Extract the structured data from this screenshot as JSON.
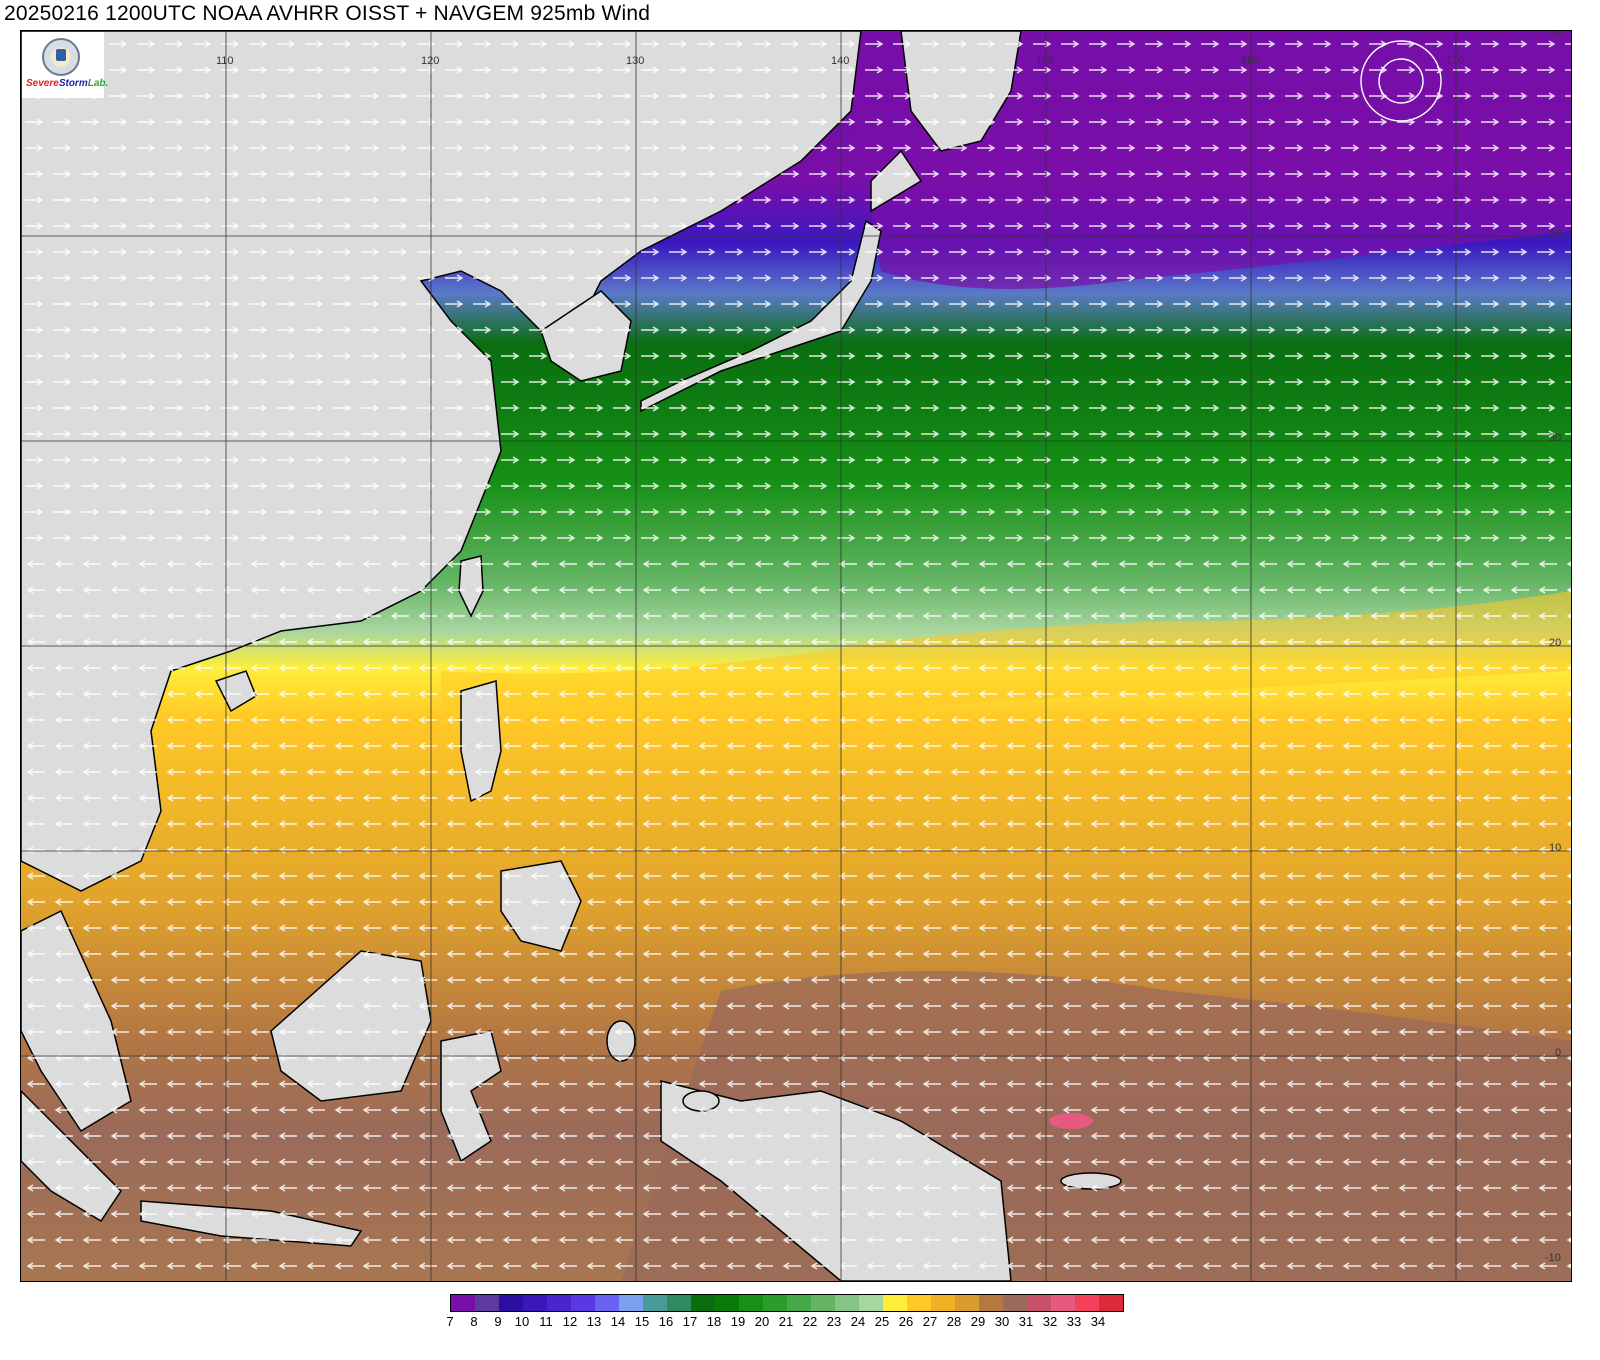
{
  "title": "20250216 1200UTC NOAA AVHRR OISST + NAVGEM 925mb Wind",
  "logo": {
    "text_part1": "Severe",
    "text_part2": "Storm",
    "text_part3": "Lab."
  },
  "map": {
    "longitude_labels": [
      "110",
      "120",
      "130",
      "140",
      "150",
      "160",
      "170"
    ],
    "latitude_labels": [
      "50",
      "40",
      "30",
      "20",
      "10",
      "0",
      "-10"
    ],
    "background_color": "#dcdcdc",
    "land_color": "#dcdcdc",
    "wind_arrow_color": "#ffffff"
  },
  "colorbar": {
    "labels": [
      "7",
      "8",
      "9",
      "10",
      "11",
      "12",
      "13",
      "14",
      "15",
      "16",
      "17",
      "18",
      "19",
      "20",
      "21",
      "22",
      "23",
      "24",
      "25",
      "26",
      "27",
      "28",
      "29",
      "30",
      "31",
      "32",
      "33",
      "34"
    ],
    "colors": [
      "#7a0ea8",
      "#5c3a9e",
      "#2c0fa0",
      "#3a18b8",
      "#4a24cc",
      "#5a38e2",
      "#6a62f0",
      "#7aa0f0",
      "#4a9a9a",
      "#2f8a60",
      "#0a6e10",
      "#087a08",
      "#169016",
      "#2c9c2c",
      "#46a846",
      "#64b464",
      "#86c486",
      "#a8d6a0",
      "#ffee3a",
      "#ffc826",
      "#f0b224",
      "#d99c30",
      "#b57842",
      "#9a6a5a",
      "#c8506a",
      "#e65a82",
      "#f4405a",
      "#dc2a3a"
    ]
  }
}
